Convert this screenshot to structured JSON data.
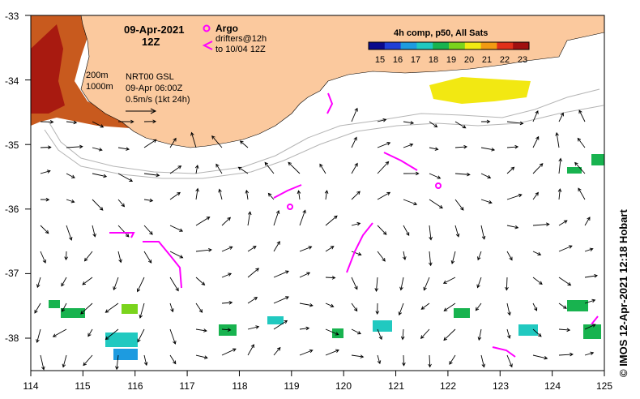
{
  "title": {
    "date": "09-Apr-2021",
    "time": "12Z"
  },
  "legend": {
    "argo_label": "Argo",
    "drifters_label": "drifters@12h",
    "drifters_sub": "to 10/04 12Z",
    "contour_200": "200m",
    "contour_1000": "1000m",
    "product": "NRT00 GSL",
    "product_time": "09-Apr 06:00Z",
    "scale_vector": "0.5m/s (1kt 24h)"
  },
  "colorbar": {
    "title": "4h comp, p50, All Sats",
    "ticks": [
      "15",
      "16",
      "17",
      "18",
      "19",
      "20",
      "21",
      "22",
      "23"
    ],
    "colors": [
      "#0a0a8c",
      "#1f3fd6",
      "#1d9be0",
      "#21c9c0",
      "#18b34f",
      "#7ad41c",
      "#f2ea12",
      "#f29a12",
      "#e0301a",
      "#a01010"
    ]
  },
  "credit": "© IMOS 12-Apr-2021 12:18 Hobart",
  "axes": {
    "x_ticks": [
      "114",
      "115",
      "116",
      "117",
      "118",
      "119",
      "120",
      "121",
      "122",
      "123",
      "124",
      "125"
    ],
    "y_ticks": [
      "-33",
      "-34",
      "-35",
      "-36",
      "-37",
      "-38"
    ],
    "x_range": [
      114,
      125
    ],
    "y_range": [
      -38.5,
      -33
    ]
  },
  "colors": {
    "land": "#fbc99e",
    "arrow": "#000000",
    "drifter": "#ff00ff",
    "contour": "#b4b4b4"
  }
}
